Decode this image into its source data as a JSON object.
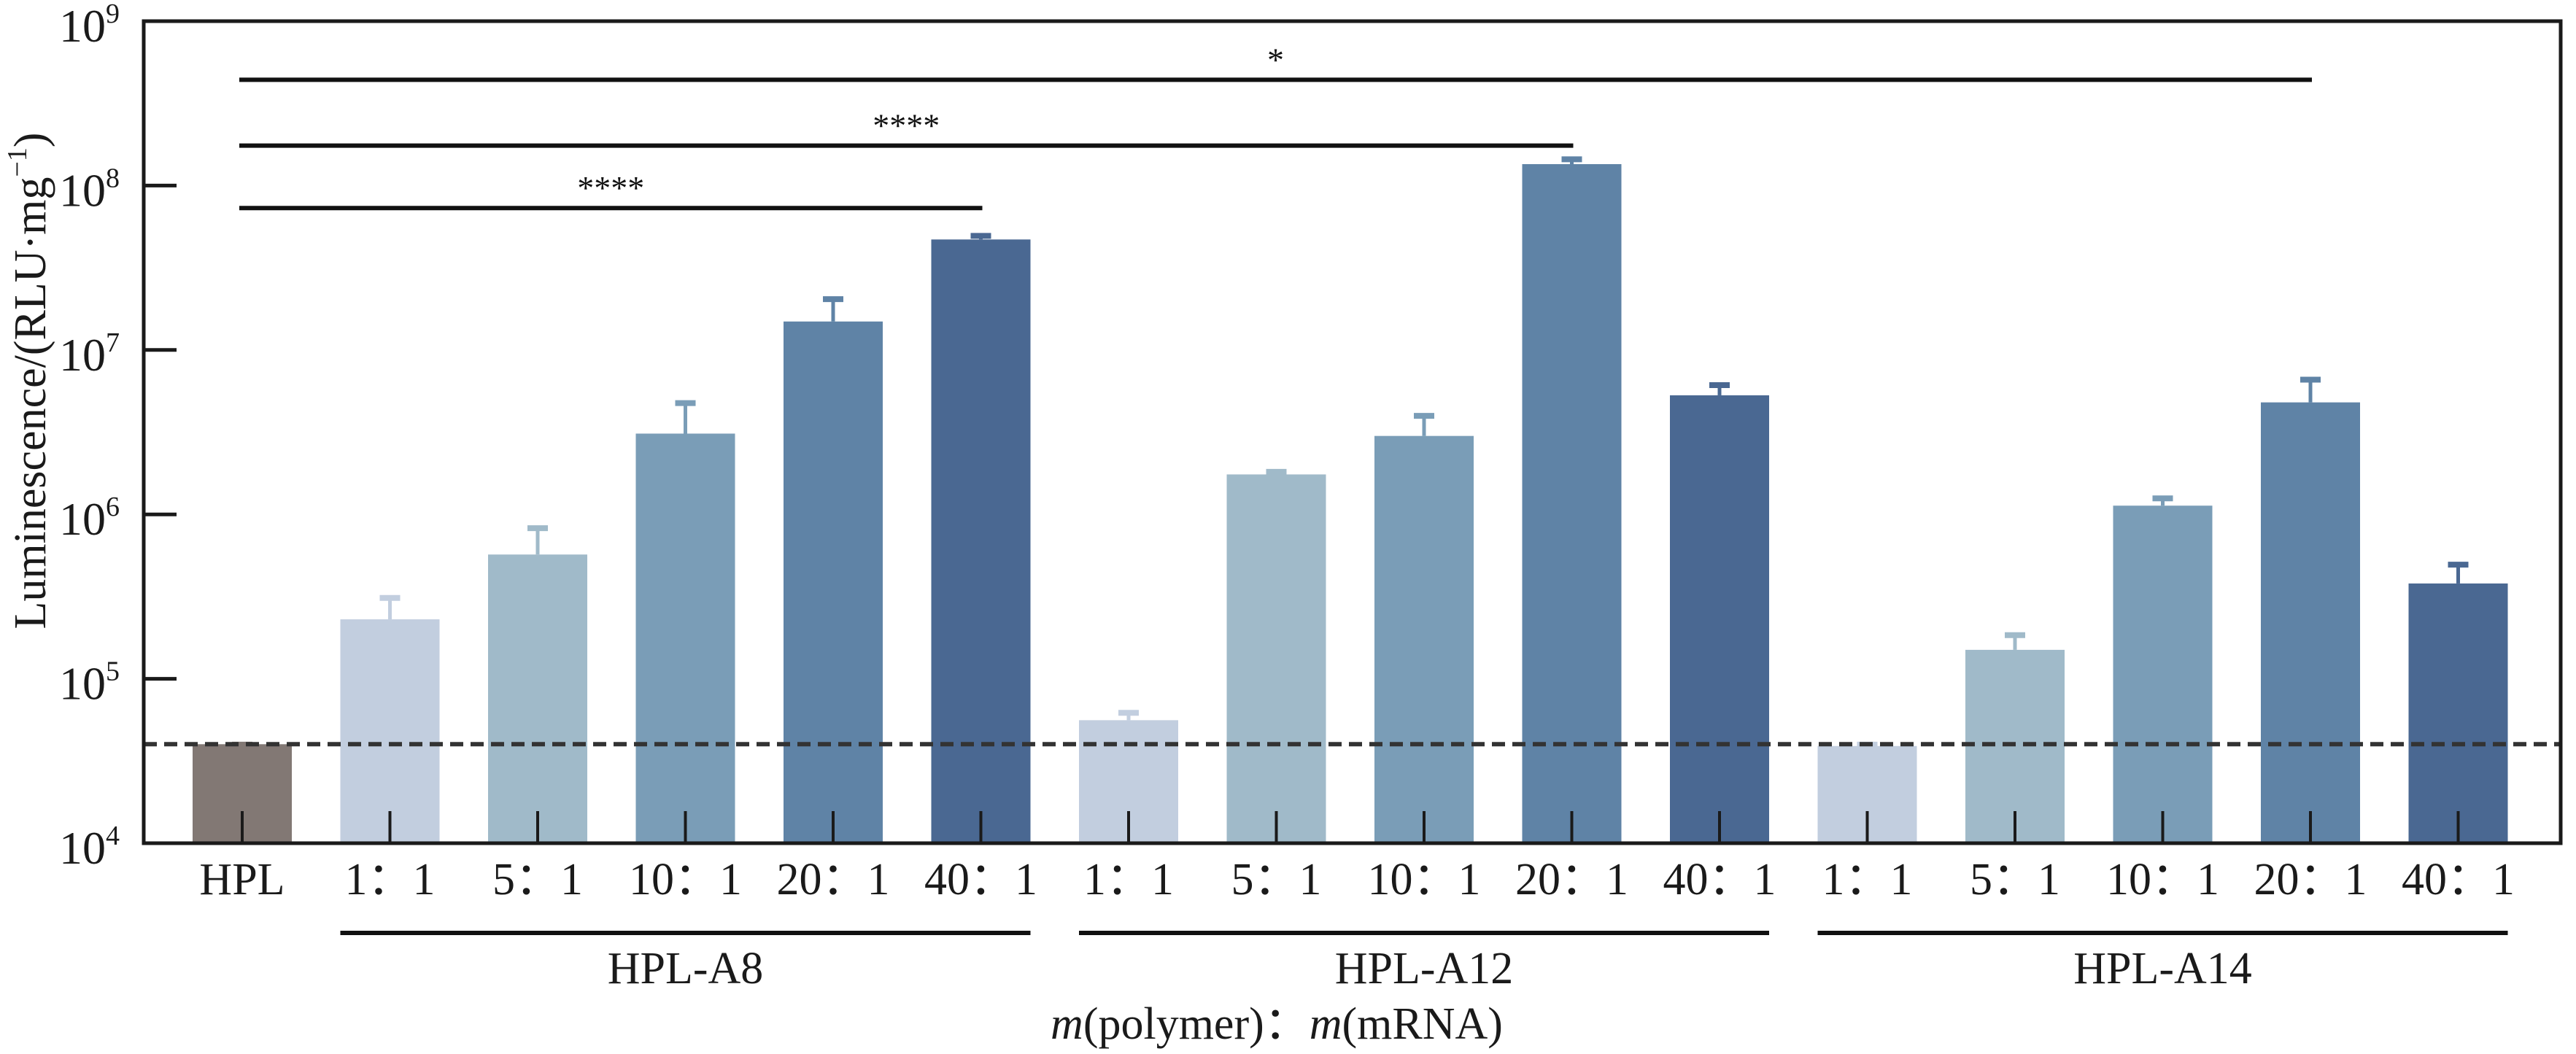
{
  "chart_data": {
    "type": "bar",
    "yscale": "log",
    "ylim": [
      10000,
      1000000000
    ],
    "ylabel": "Luminescence/(RLU·mg⁻¹)",
    "ylabel_parts": {
      "main": "Luminescence/(RLU·mg",
      "sup": "−1",
      "close": ")"
    },
    "xlabel_parts": {
      "m1": "m",
      "p1": "(polymer)：",
      "m2": "m",
      "p2": "(mRNA)"
    },
    "xlabel": "m(polymer)：m(mRNA)",
    "yticks": [
      {
        "value": 10000,
        "base": "10",
        "exp": "4"
      },
      {
        "value": 100000,
        "base": "10",
        "exp": "5"
      },
      {
        "value": 1000000,
        "base": "10",
        "exp": "6"
      },
      {
        "value": 10000000,
        "base": "10",
        "exp": "7"
      },
      {
        "value": 100000000,
        "base": "10",
        "exp": "8"
      },
      {
        "value": 1000000000,
        "base": "10",
        "exp": "9"
      }
    ],
    "baseline_reference": 40000,
    "categories": [
      "HPL",
      "1：1",
      "5：1",
      "10：1",
      "20：1",
      "40：1",
      "1：1",
      "5：1",
      "10：1",
      "20：1",
      "40：1",
      "1：1",
      "5：1",
      "10：1",
      "20：1",
      "40：1"
    ],
    "groups": [
      {
        "label": "HPL-A8",
        "start": 1,
        "end": 5
      },
      {
        "label": "HPL-A12",
        "start": 6,
        "end": 10
      },
      {
        "label": "HPL-A14",
        "start": 11,
        "end": 15
      }
    ],
    "bars": [
      {
        "group": "HPL",
        "ratio": "HPL",
        "value": 40000,
        "error_upper": 41000,
        "color": "#827874"
      },
      {
        "group": "HPL-A8",
        "ratio": "1：1",
        "value": 230000,
        "error_upper": 320000,
        "color": "#C2CEDF"
      },
      {
        "group": "HPL-A8",
        "ratio": "5：1",
        "value": 570000,
        "error_upper": 850000,
        "color": "#A0BAC9"
      },
      {
        "group": "HPL-A8",
        "ratio": "10：1",
        "value": 3100000,
        "error_upper": 4900000,
        "color": "#7A9DB7"
      },
      {
        "group": "HPL-A8",
        "ratio": "20：1",
        "value": 14900000,
        "error_upper": 21000000,
        "color": "#5F83A6"
      },
      {
        "group": "HPL-A8",
        "ratio": "40：1",
        "value": 47000000,
        "error_upper": 51000000,
        "color": "#4A6892"
      },
      {
        "group": "HPL-A12",
        "ratio": "1：1",
        "value": 56000,
        "error_upper": 64000,
        "color": "#C2CEDF"
      },
      {
        "group": "HPL-A12",
        "ratio": "5：1",
        "value": 1750000,
        "error_upper": 1870000,
        "color": "#A0BAC9"
      },
      {
        "group": "HPL-A12",
        "ratio": "10：1",
        "value": 3000000,
        "error_upper": 4100000,
        "color": "#7A9DB7"
      },
      {
        "group": "HPL-A12",
        "ratio": "20：1",
        "value": 135000000,
        "error_upper": 149000000,
        "color": "#5F83A6"
      },
      {
        "group": "HPL-A12",
        "ratio": "40：1",
        "value": 5300000,
        "error_upper": 6300000,
        "color": "#4A6892"
      },
      {
        "group": "HPL-A14",
        "ratio": "1：1",
        "value": 39000,
        "error_upper": 41000,
        "color": "#C2CEDF"
      },
      {
        "group": "HPL-A14",
        "ratio": "5：1",
        "value": 150000,
        "error_upper": 190000,
        "color": "#A0BAC9"
      },
      {
        "group": "HPL-A14",
        "ratio": "10：1",
        "value": 1130000,
        "error_upper": 1290000,
        "color": "#7A9DB7"
      },
      {
        "group": "HPL-A14",
        "ratio": "20：1",
        "value": 4800000,
        "error_upper": 6800000,
        "color": "#5F83A6"
      },
      {
        "group": "HPL-A14",
        "ratio": "40：1",
        "value": 380000,
        "error_upper": 510000,
        "color": "#4A6892"
      }
    ],
    "significance": [
      {
        "from": 0,
        "to": 14,
        "label": "*",
        "level_value": 440000000
      },
      {
        "from": 0,
        "to": 9,
        "label": "****",
        "level_value": 175000000
      },
      {
        "from": 0,
        "to": 5,
        "label": "****",
        "level_value": 73000000
      }
    ],
    "colors": {
      "axis": "#1a1a1a",
      "dashed": "#333333"
    }
  }
}
